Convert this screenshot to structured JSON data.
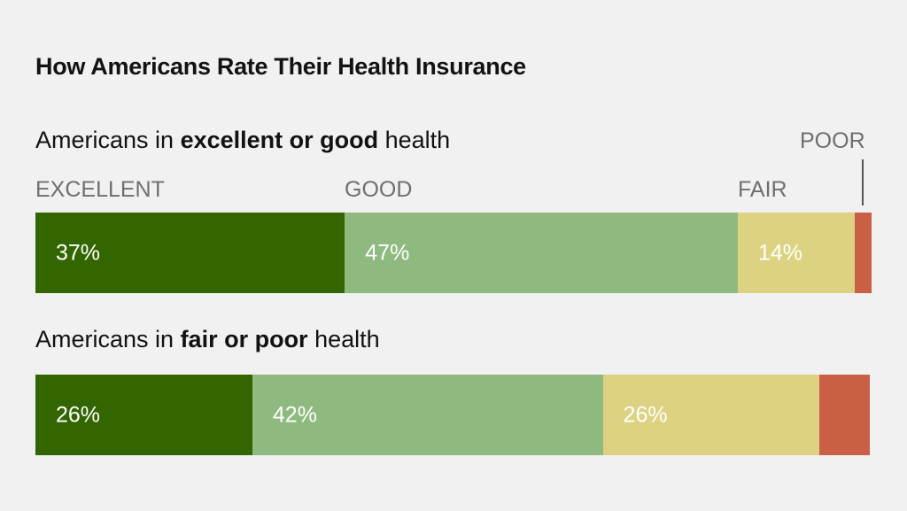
{
  "chart_data": {
    "type": "bar",
    "stacked": true,
    "orientation": "horizontal",
    "title": "How Americans Rate Their Health Insurance",
    "categories": [
      "Excellent",
      "Good",
      "Fair",
      "Poor"
    ],
    "category_labels": [
      "EXCELLENT",
      "GOOD",
      "FAIR",
      "POOR"
    ],
    "colors": [
      "#336600",
      "#8fba7f",
      "#dcd282",
      "#c95f44"
    ],
    "groups": [
      {
        "subtitle_pre": "Americans in ",
        "subtitle_bold": "excellent or good",
        "subtitle_post": " health",
        "values": [
          37,
          47,
          14,
          2
        ],
        "labels": [
          "37%",
          "47%",
          "14%",
          ""
        ]
      },
      {
        "subtitle_pre": "Americans in ",
        "subtitle_bold": "fair or poor",
        "subtitle_post": " health",
        "values": [
          26,
          42,
          26,
          6
        ],
        "labels": [
          "26%",
          "42%",
          "26%",
          ""
        ]
      }
    ]
  }
}
